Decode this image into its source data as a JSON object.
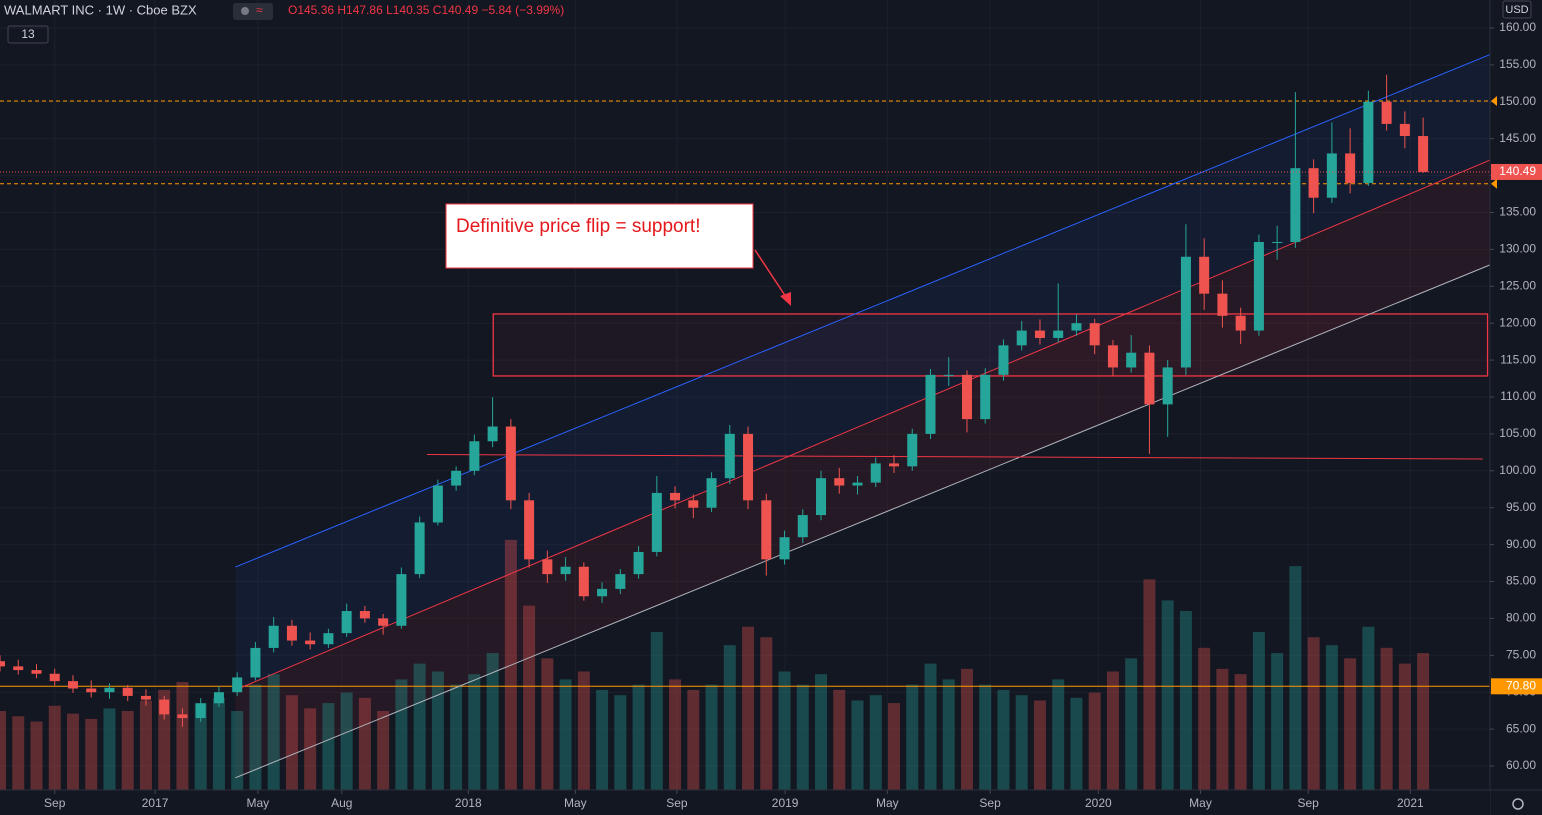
{
  "chart_data": {
    "type": "candlestick",
    "title": "WALMART INC · 1W · Cboe BZX",
    "legend_text": "O145.36 H147.86 L140.35 C140.49 −5.84 (−3.99%)",
    "indicator_count": "13",
    "currency": "USD",
    "annotation": "Definitive price flip = support!",
    "up_color": "#26a69a",
    "down_color": "#ef5350",
    "grid": true,
    "xlim": [
      0,
      245
    ],
    "ylim": [
      56.75,
      163.79
    ],
    "y2lim": [
      0,
      300
    ],
    "xticks": [
      {
        "value": 9,
        "label": "Sep"
      },
      {
        "value": 25.5,
        "label": "2017"
      },
      {
        "value": 42.4,
        "label": "May"
      },
      {
        "value": 56.2,
        "label": "Aug"
      },
      {
        "value": 77,
        "label": "2018"
      },
      {
        "value": 94.6,
        "label": "May"
      },
      {
        "value": 111.3,
        "label": "Sep"
      },
      {
        "value": 129.1,
        "label": "2019"
      },
      {
        "value": 145.9,
        "label": "May"
      },
      {
        "value": 162.8,
        "label": "Sep"
      },
      {
        "value": 180.6,
        "label": "2020"
      },
      {
        "value": 197.4,
        "label": "May"
      },
      {
        "value": 215.1,
        "label": "Sep"
      },
      {
        "value": 231.9,
        "label": "2021"
      }
    ],
    "yticks": [
      {
        "value": 60,
        "label": "60.00"
      },
      {
        "value": 65,
        "label": "65.00"
      },
      {
        "value": 70,
        "label": "70.00"
      },
      {
        "value": 75,
        "label": "75.00"
      },
      {
        "value": 80,
        "label": "80.00"
      },
      {
        "value": 85,
        "label": "85.00"
      },
      {
        "value": 90,
        "label": "90.00"
      },
      {
        "value": 95,
        "label": "95.00"
      },
      {
        "value": 100,
        "label": "100.00"
      },
      {
        "value": 105,
        "label": "105.00"
      },
      {
        "value": 110,
        "label": "110.00"
      },
      {
        "value": 115,
        "label": "115.00"
      },
      {
        "value": 120,
        "label": "120.00"
      },
      {
        "value": 125,
        "label": "125.00"
      },
      {
        "value": 130,
        "label": "130.00"
      },
      {
        "value": 135,
        "label": "135.00"
      },
      {
        "value": 140,
        "label": "140.00"
      },
      {
        "value": 145,
        "label": "145.00"
      },
      {
        "value": 150,
        "label": "150.00"
      },
      {
        "value": 155,
        "label": "155.00"
      },
      {
        "value": 160,
        "label": "160.00"
      }
    ],
    "x": [
      0,
      3,
      6,
      9,
      12,
      15,
      18,
      21,
      24,
      27,
      30,
      33,
      36,
      39,
      42,
      45,
      48,
      51,
      54,
      57,
      60,
      63,
      66,
      69,
      72,
      75,
      78,
      81,
      84,
      87,
      90,
      93,
      96,
      99,
      102,
      105,
      108,
      111,
      114,
      117,
      120,
      123,
      126,
      129,
      132,
      135,
      138,
      141,
      144,
      147,
      150,
      153,
      156,
      159,
      162,
      165,
      168,
      171,
      174,
      177,
      180,
      183,
      186,
      189,
      192,
      195,
      198,
      201,
      204,
      207,
      210,
      213,
      216,
      219,
      222,
      225,
      228,
      231,
      234
    ],
    "candles": [
      [
        74.2,
        75,
        72.8,
        73.5
      ],
      [
        73.5,
        74.4,
        72.4,
        73
      ],
      [
        73,
        73.8,
        71.9,
        72.5
      ],
      [
        72.5,
        73.2,
        70.9,
        71.5
      ],
      [
        71.5,
        72.3,
        69.9,
        70.5
      ],
      [
        70.5,
        71.6,
        69.3,
        70
      ],
      [
        70,
        71.2,
        69.1,
        70.6
      ],
      [
        70.6,
        71,
        68.8,
        69.5
      ],
      [
        69.5,
        70.4,
        68.2,
        69
      ],
      [
        69,
        69.5,
        66.3,
        67
      ],
      [
        67,
        67.8,
        65.3,
        66.5
      ],
      [
        66.5,
        69.2,
        66,
        68.5
      ],
      [
        68.5,
        70.8,
        68,
        70
      ],
      [
        70,
        72.7,
        69.5,
        72
      ],
      [
        72,
        76.8,
        71.6,
        76
      ],
      [
        76,
        80.2,
        75.4,
        79
      ],
      [
        79,
        79.8,
        76.3,
        77
      ],
      [
        77,
        78.1,
        75.8,
        76.5
      ],
      [
        76.5,
        78.6,
        76,
        78
      ],
      [
        78,
        82,
        77.5,
        81
      ],
      [
        81,
        81.7,
        79.4,
        80
      ],
      [
        80,
        80.6,
        77.8,
        79
      ],
      [
        79,
        86.9,
        78.6,
        86
      ],
      [
        86,
        93.8,
        85.5,
        93
      ],
      [
        93,
        98.8,
        92.6,
        98
      ],
      [
        98,
        100.6,
        97.3,
        100
      ],
      [
        100,
        104.9,
        99.4,
        104
      ],
      [
        104,
        109.98,
        103.2,
        106
      ],
      [
        106,
        107,
        94.8,
        96
      ],
      [
        96,
        97,
        86.9,
        88
      ],
      [
        88,
        89.2,
        84.8,
        86
      ],
      [
        86,
        88.3,
        85.1,
        87
      ],
      [
        87,
        87.6,
        82.4,
        83
      ],
      [
        83,
        84.9,
        82.1,
        84
      ],
      [
        84,
        86.7,
        83.3,
        86
      ],
      [
        86,
        89.8,
        85.4,
        89
      ],
      [
        89,
        99.3,
        88.4,
        97
      ],
      [
        97,
        97.9,
        94.9,
        96
      ],
      [
        96,
        96.8,
        93.6,
        95
      ],
      [
        95,
        99.8,
        94.4,
        99
      ],
      [
        99,
        106.2,
        98.2,
        105
      ],
      [
        105,
        106,
        94.8,
        96
      ],
      [
        96,
        96.9,
        85.8,
        88
      ],
      [
        88,
        91.9,
        87.3,
        91
      ],
      [
        91,
        94.8,
        90.2,
        94
      ],
      [
        94,
        100,
        93.3,
        99
      ],
      [
        99,
        100.4,
        96.9,
        98
      ],
      [
        98,
        99.3,
        96.8,
        98.4
      ],
      [
        98.4,
        101.8,
        97.8,
        101
      ],
      [
        101,
        102.1,
        99.7,
        100.6
      ],
      [
        100.6,
        105.7,
        100,
        105
      ],
      [
        105,
        113.8,
        104.3,
        113
      ],
      [
        113,
        115.4,
        111.5,
        113
      ],
      [
        113,
        113.6,
        105.2,
        107
      ],
      [
        107,
        113.9,
        106.4,
        113
      ],
      [
        113,
        117.8,
        112.2,
        117
      ],
      [
        117,
        120.3,
        116.3,
        119
      ],
      [
        119,
        120.5,
        117.1,
        118
      ],
      [
        118,
        125.4,
        117.4,
        119
      ],
      [
        119,
        121.2,
        118.3,
        120
      ],
      [
        120,
        120.6,
        115.8,
        117
      ],
      [
        117,
        117.7,
        112.9,
        114
      ],
      [
        114,
        118.4,
        113.3,
        116
      ],
      [
        116,
        117,
        102.3,
        109
      ],
      [
        109,
        115,
        104.6,
        114
      ],
      [
        114,
        133.4,
        113,
        129
      ],
      [
        129,
        131.5,
        121.8,
        124
      ],
      [
        124,
        125.8,
        119.4,
        121
      ],
      [
        121,
        122.1,
        117.2,
        119
      ],
      [
        119,
        132,
        118.3,
        131
      ],
      [
        131,
        133.2,
        128.6,
        131
      ],
      [
        131,
        151.3,
        130.2,
        141
      ],
      [
        141,
        142.2,
        134.9,
        137
      ],
      [
        137,
        147.2,
        136.3,
        143
      ],
      [
        143,
        146.4,
        137.6,
        139
      ],
      [
        139,
        151.5,
        138.6,
        150
      ],
      [
        150,
        153.66,
        146.1,
        147
      ],
      [
        147,
        148.7,
        143.7,
        145.36
      ],
      [
        145.36,
        147.86,
        140.35,
        140.49
      ]
    ],
    "volume": [
      30,
      28,
      26,
      32,
      29,
      27,
      31,
      30,
      34,
      38,
      41,
      33,
      35,
      30,
      40,
      44,
      36,
      31,
      33,
      37,
      35,
      30,
      42,
      48,
      45,
      40,
      44,
      52,
      95,
      70,
      50,
      42,
      45,
      38,
      36,
      40,
      60,
      42,
      38,
      40,
      55,
      62,
      58,
      45,
      40,
      44,
      38,
      34,
      36,
      33,
      40,
      48,
      42,
      46,
      40,
      38,
      36,
      34,
      42,
      35,
      37,
      45,
      50,
      80,
      72,
      68,
      54,
      46,
      44,
      60,
      52,
      85,
      58,
      55,
      50,
      62,
      54,
      48,
      52
    ],
    "lines": [
      {
        "x": [
          38.7,
          245
        ],
        "y": [
          86.96,
          156.4
        ],
        "color": "#2962ff"
      },
      {
        "x": [
          38.7,
          245
        ],
        "y": [
          70.3,
          142.1
        ],
        "color": "#f23645"
      },
      {
        "x": [
          38.7,
          245
        ],
        "y": [
          58.4,
          127.9
        ],
        "color": "#b2b5be"
      },
      {
        "x": [
          70.2,
          243.8
        ],
        "y": [
          102.2,
          101.6
        ],
        "color": "#f23645"
      }
    ],
    "levels": [
      {
        "value": 150.1,
        "color": "#ff9800",
        "dashed": true
      },
      {
        "value": 138.9,
        "color": "#ff9800",
        "dashed": true
      },
      {
        "value": 70.8,
        "label": "70.80",
        "color": "#ff9800",
        "dashed": false
      }
    ],
    "zone": {
      "x": [
        81.1,
        244.6
      ],
      "y": [
        112.85,
        121.25
      ],
      "color": "#f23645"
    },
    "last_price": 140.49
  }
}
